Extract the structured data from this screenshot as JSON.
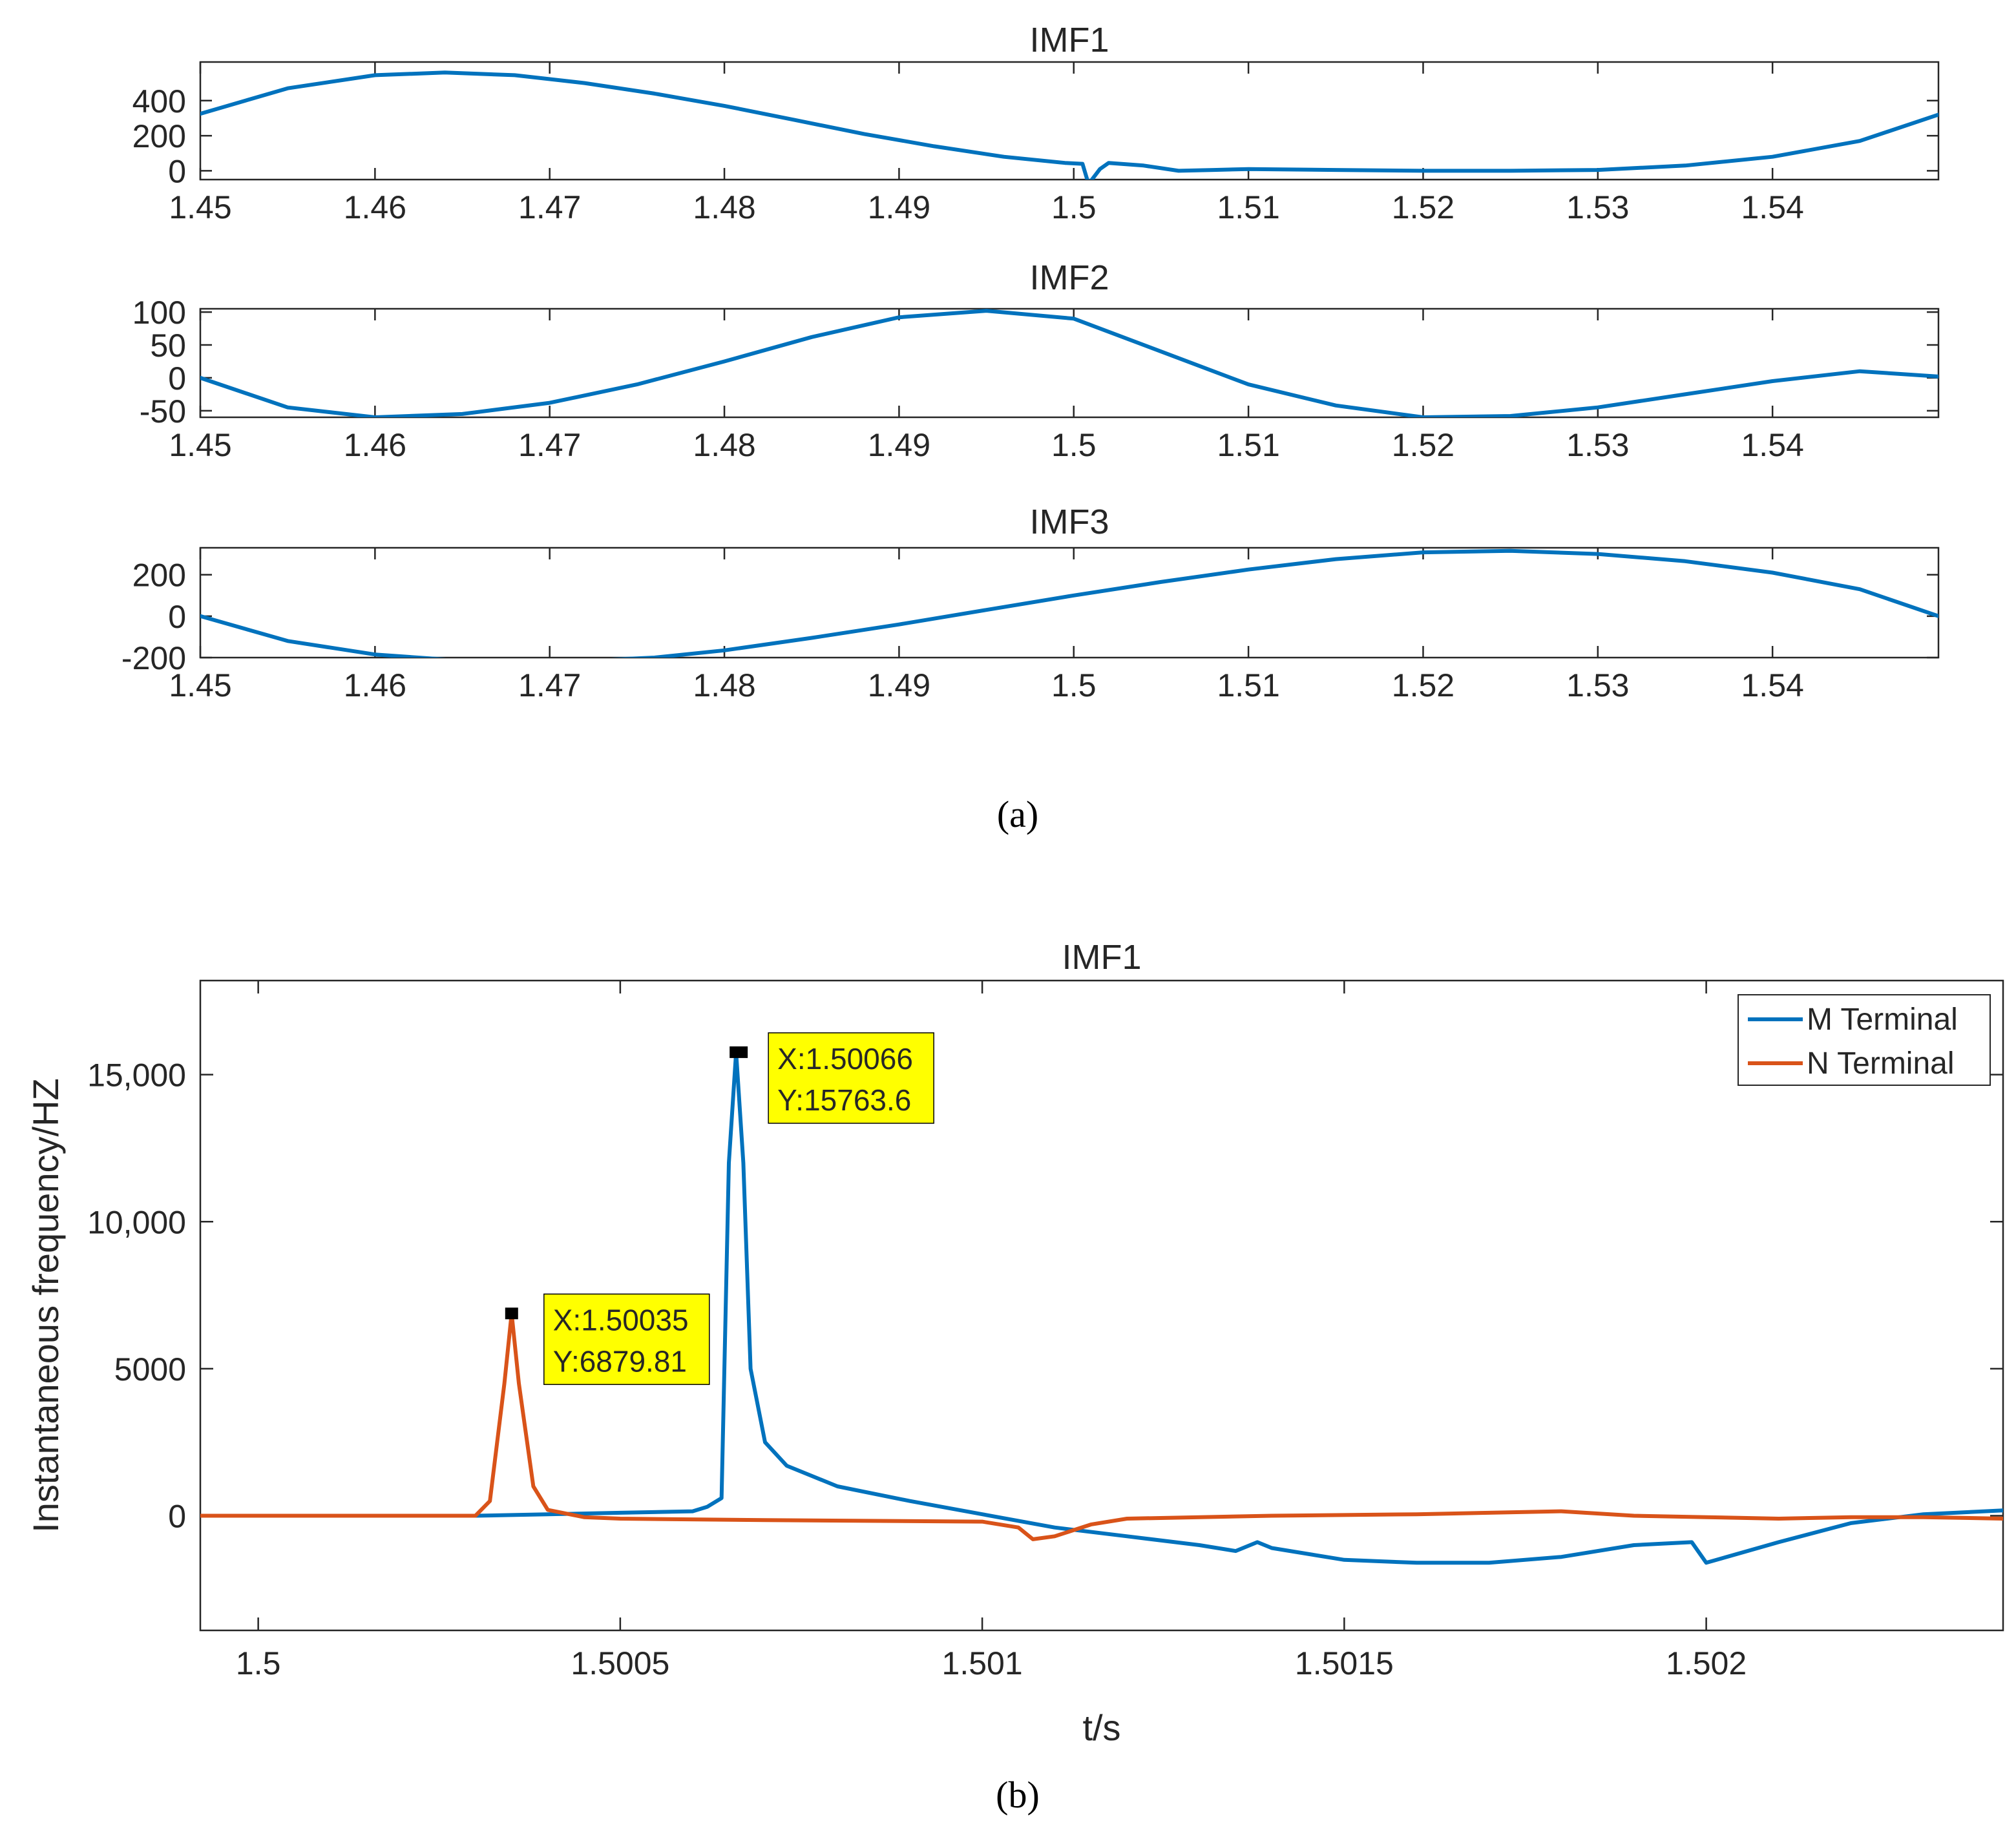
{
  "captions": {
    "a": "(a)",
    "b": "(b)"
  },
  "colors": {
    "m_terminal": "#0072BD",
    "n_terminal": "#D95319",
    "datatip_bg": "#FFFF00",
    "axis": "#262626"
  },
  "chart_data": [
    {
      "id": "imf1_top",
      "type": "line",
      "title": "IMF1",
      "xlabel": "",
      "ylabel": "",
      "xlim": [
        1.45,
        1.5495
      ],
      "ylim": [
        -50,
        620
      ],
      "xticks": [
        1.45,
        1.46,
        1.47,
        1.48,
        1.49,
        1.5,
        1.51,
        1.52,
        1.53,
        1.54
      ],
      "xtick_labels": [
        "1.45",
        "1.46",
        "1.47",
        "1.48",
        "1.49",
        "1.5",
        "1.51",
        "1.52",
        "1.53",
        "1.54"
      ],
      "yticks": [
        0,
        200,
        400
      ],
      "ytick_labels": [
        "0",
        "200",
        "400"
      ],
      "grid": false,
      "series": [
        {
          "name": "IMF1",
          "color": "#0072BD",
          "x": [
            1.45,
            1.455,
            1.46,
            1.464,
            1.468,
            1.472,
            1.476,
            1.48,
            1.484,
            1.488,
            1.492,
            1.496,
            1.4995,
            1.5005,
            1.5008,
            1.501,
            1.5015,
            1.502,
            1.504,
            1.506,
            1.508,
            1.51,
            1.515,
            1.52,
            1.525,
            1.53,
            1.535,
            1.54,
            1.545,
            1.5495
          ],
          "y": [
            325,
            470,
            545,
            560,
            545,
            500,
            440,
            370,
            290,
            210,
            140,
            80,
            45,
            40,
            -60,
            -55,
            10,
            45,
            30,
            0,
            5,
            10,
            5,
            0,
            0,
            5,
            30,
            80,
            170,
            320
          ]
        }
      ]
    },
    {
      "id": "imf2",
      "type": "line",
      "title": "IMF2",
      "xlabel": "",
      "ylabel": "",
      "xlim": [
        1.45,
        1.5495
      ],
      "ylim": [
        -60,
        105
      ],
      "xticks": [
        1.45,
        1.46,
        1.47,
        1.48,
        1.49,
        1.5,
        1.51,
        1.52,
        1.53,
        1.54
      ],
      "xtick_labels": [
        "1.45",
        "1.46",
        "1.47",
        "1.48",
        "1.49",
        "1.5",
        "1.51",
        "1.52",
        "1.53",
        "1.54"
      ],
      "yticks": [
        -50,
        0,
        50,
        100
      ],
      "ytick_labels": [
        "-50",
        "0",
        "50",
        "100"
      ],
      "grid": false,
      "series": [
        {
          "name": "IMF2",
          "color": "#0072BD",
          "x": [
            1.45,
            1.455,
            1.46,
            1.465,
            1.47,
            1.475,
            1.48,
            1.485,
            1.49,
            1.495,
            1.5,
            1.505,
            1.51,
            1.515,
            1.52,
            1.525,
            1.53,
            1.535,
            1.54,
            1.545,
            1.5495
          ],
          "y": [
            0,
            -45,
            -60,
            -55,
            -38,
            -10,
            25,
            62,
            92,
            102,
            90,
            40,
            -10,
            -42,
            -60,
            -58,
            -45,
            -25,
            -5,
            10,
            2
          ]
        }
      ]
    },
    {
      "id": "imf3",
      "type": "line",
      "title": "IMF3",
      "xlabel": "",
      "ylabel": "",
      "xlim": [
        1.45,
        1.5495
      ],
      "ylim": [
        -200,
        330
      ],
      "xticks": [
        1.45,
        1.46,
        1.47,
        1.48,
        1.49,
        1.5,
        1.51,
        1.52,
        1.53,
        1.54
      ],
      "xtick_labels": [
        "1.45",
        "1.46",
        "1.47",
        "1.48",
        "1.49",
        "1.5",
        "1.51",
        "1.52",
        "1.53",
        "1.54"
      ],
      "yticks": [
        -200,
        0,
        200
      ],
      "ytick_labels": [
        "-200",
        "0",
        "200"
      ],
      "grid": false,
      "series": [
        {
          "name": "IMF3",
          "color": "#0072BD",
          "x": [
            1.45,
            1.455,
            1.46,
            1.465,
            1.4685,
            1.472,
            1.476,
            1.48,
            1.485,
            1.49,
            1.495,
            1.5,
            1.505,
            1.51,
            1.515,
            1.52,
            1.525,
            1.53,
            1.535,
            1.54,
            1.545,
            1.5495
          ],
          "y": [
            0,
            -120,
            -185,
            -215,
            -220,
            -215,
            -200,
            -165,
            -105,
            -40,
            30,
            100,
            165,
            225,
            275,
            308,
            315,
            300,
            265,
            210,
            130,
            0
          ]
        }
      ]
    },
    {
      "id": "imf1_inst_freq",
      "type": "line",
      "title": "IMF1",
      "xlabel": "t/s",
      "ylabel": "Instantaneous frequency/HZ",
      "xlim": [
        1.49992,
        1.50241
      ],
      "ylim": [
        -3900,
        18200
      ],
      "xticks": [
        1.5,
        1.5005,
        1.501,
        1.5015,
        1.502
      ],
      "xtick_labels": [
        "1.5",
        "1.5005",
        "1.501",
        "1.5015",
        "1.502"
      ],
      "yticks": [
        0,
        5000,
        10000,
        15000
      ],
      "ytick_labels": [
        "0",
        "5000",
        "10,000",
        "15,000"
      ],
      "grid": false,
      "legend": {
        "position": "top-right",
        "entries": [
          "M Terminal",
          "N Terminal"
        ]
      },
      "series": [
        {
          "name": "M Terminal",
          "color": "#0072BD",
          "x": [
            1.49992,
            1.5003,
            1.5004,
            1.5005,
            1.5006,
            1.50062,
            1.50064,
            1.50065,
            1.50066,
            1.50067,
            1.50068,
            1.5007,
            1.50073,
            1.5008,
            1.5009,
            1.501,
            1.5011,
            1.5012,
            1.5013,
            1.50135,
            1.50138,
            1.5014,
            1.5015,
            1.5016,
            1.5017,
            1.5018,
            1.5019,
            1.50198,
            1.502,
            1.5021,
            1.5022,
            1.5023,
            1.50241
          ],
          "y": [
            0,
            0,
            50,
            100,
            150,
            300,
            600,
            12000,
            15763.6,
            12000,
            5000,
            2500,
            1700,
            1000,
            500,
            50,
            -400,
            -700,
            -1000,
            -1200,
            -900,
            -1100,
            -1500,
            -1600,
            -1600,
            -1400,
            -1000,
            -900,
            -1600,
            -900,
            -250,
            50,
            180
          ]
        },
        {
          "name": "N Terminal",
          "color": "#D95319",
          "x": [
            1.49992,
            1.5003,
            1.50032,
            1.50034,
            1.50035,
            1.50036,
            1.50038,
            1.5004,
            1.50045,
            1.5005,
            1.5007,
            1.501,
            1.50105,
            1.50107,
            1.5011,
            1.50115,
            1.5012,
            1.5014,
            1.5016,
            1.5017,
            1.5018,
            1.5019,
            1.502,
            1.5021,
            1.5022,
            1.5023,
            1.50241
          ],
          "y": [
            0,
            0,
            500,
            4500,
            6879.81,
            4500,
            1000,
            200,
            -50,
            -100,
            -150,
            -200,
            -400,
            -800,
            -700,
            -300,
            -100,
            0,
            50,
            100,
            150,
            0,
            -50,
            -100,
            -50,
            -50,
            -100
          ]
        }
      ],
      "annotations": [
        {
          "series": "M Terminal",
          "x": 1.50066,
          "y": 15763.6,
          "lines": [
            "X:1.50066",
            "Y:15763.6"
          ]
        },
        {
          "series": "N Terminal",
          "x": 1.50035,
          "y": 6879.81,
          "lines": [
            "X:1.50035",
            "Y:6879.81"
          ]
        }
      ]
    }
  ]
}
